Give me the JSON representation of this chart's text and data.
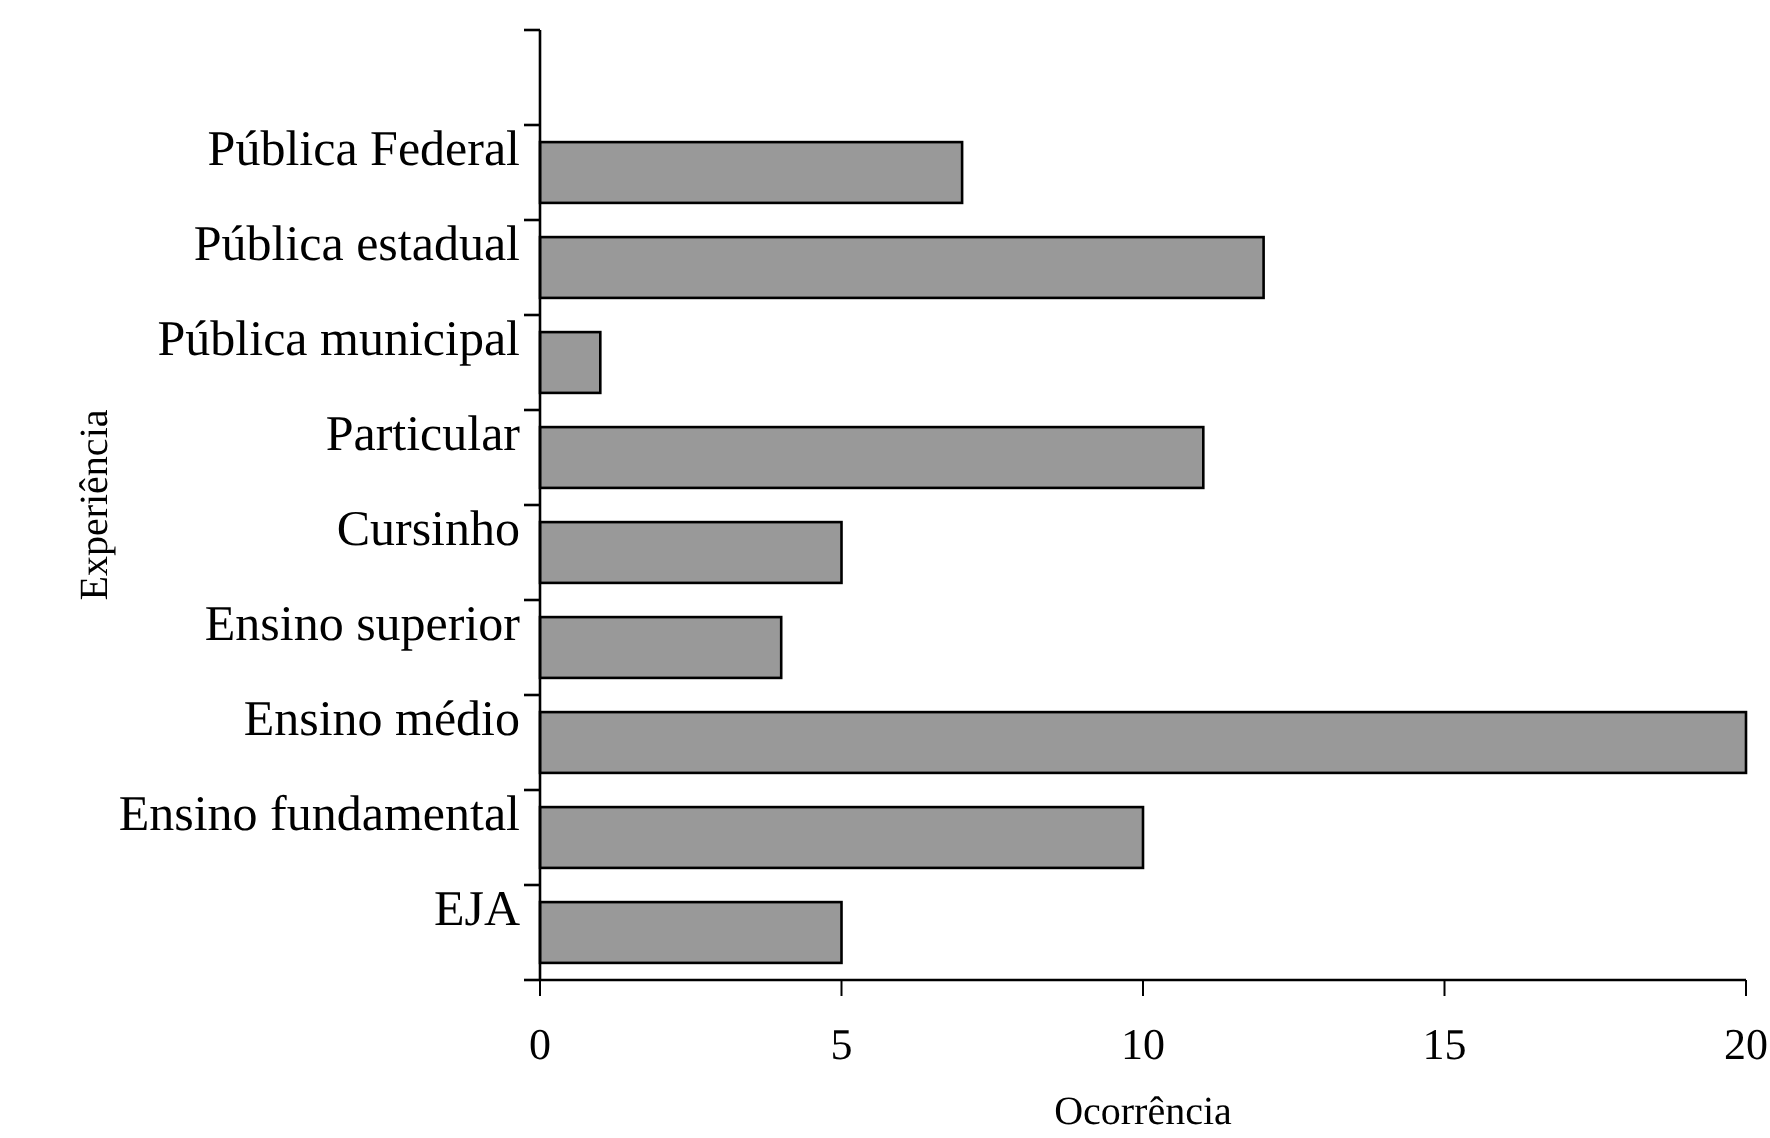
{
  "chart_data": {
    "type": "bar",
    "orientation": "horizontal",
    "xlabel": "Ocorrência",
    "ylabel": "Experiência",
    "categories": [
      null,
      "Pública Federal",
      "Pública estadual",
      "Pública municipal",
      "Particular",
      "Cursinho",
      "Ensino superior",
      "Ensino médio",
      "Ensino fundamental",
      "EJA"
    ],
    "values": [
      null,
      7,
      12,
      1,
      11,
      5,
      4,
      20,
      10,
      5
    ],
    "color": "#999999",
    "xlim": [
      0,
      20
    ],
    "xticks": [
      0,
      5,
      10,
      15,
      20
    ],
    "grid": false
  }
}
